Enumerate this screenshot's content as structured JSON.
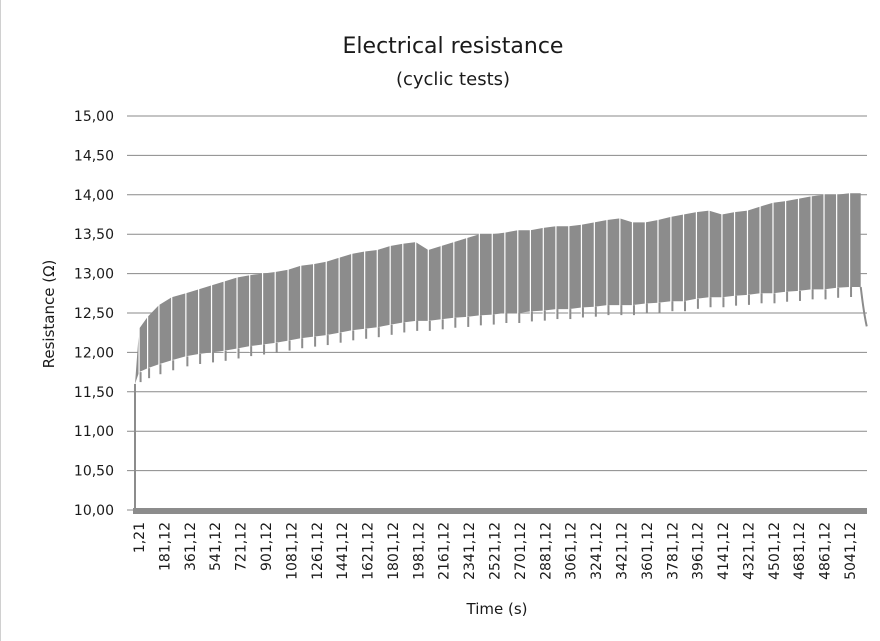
{
  "chart_data": {
    "type": "line",
    "title": "Electrical resistance",
    "subtitle": "(cyclic tests)",
    "xlabel": "Time (s)",
    "ylabel": "Resistance (Ω)",
    "ylim": [
      10.0,
      15.0
    ],
    "y_ticks": [
      "10,00",
      "10,50",
      "11,00",
      "11,50",
      "12,00",
      "12,50",
      "13,00",
      "13,50",
      "14,00",
      "14,50",
      "15,00"
    ],
    "y_tick_values": [
      10.0,
      10.5,
      11.0,
      11.5,
      12.0,
      12.5,
      13.0,
      13.5,
      14.0,
      14.5,
      15.0
    ],
    "x_ticks": [
      "1,21",
      "181,12",
      "361,12",
      "541,12",
      "721,12",
      "901,12",
      "1081,12",
      "1261,12",
      "1441,12",
      "1621,12",
      "1801,12",
      "1981,12",
      "2161,12",
      "2341,12",
      "2521,12",
      "2701,12",
      "2881,12",
      "3061,12",
      "3241,12",
      "3421,12",
      "3601,12",
      "3781,12",
      "3961,12",
      "4141,12",
      "4321,12",
      "4501,12",
      "4681,12",
      "4861,12",
      "5041,12"
    ],
    "xlim": [
      1.21,
      5150
    ],
    "grid": true,
    "legend": "none",
    "series_color": "#8c8c8c",
    "series": [
      {
        "x": [
          1.21,
          30,
          90,
          170,
          260,
          360,
          450,
          541,
          630,
          721,
          810,
          901,
          990,
          1081,
          1170,
          1261,
          1350,
          1441,
          1530,
          1621,
          1710,
          1801,
          1890,
          1981,
          2070,
          2161,
          2250,
          2341,
          2430,
          2521,
          2610,
          2701,
          2790,
          2881,
          2970,
          3061,
          3150,
          3241,
          3330,
          3421,
          3510,
          3601,
          3690,
          3781,
          3870,
          3961,
          4050,
          4141,
          4230,
          4321,
          4410,
          4501,
          4590,
          4681,
          4770,
          4861,
          4950,
          5041,
          5120
        ],
        "y_upper": [
          11.6,
          12.3,
          12.45,
          12.6,
          12.7,
          12.75,
          12.8,
          12.85,
          12.9,
          12.95,
          12.98,
          13.0,
          13.02,
          13.05,
          13.1,
          13.12,
          13.15,
          13.2,
          13.25,
          13.28,
          13.3,
          13.35,
          13.38,
          13.4,
          13.3,
          13.35,
          13.4,
          13.45,
          13.5,
          13.5,
          13.52,
          13.55,
          13.55,
          13.58,
          13.6,
          13.6,
          13.62,
          13.65,
          13.68,
          13.7,
          13.65,
          13.65,
          13.68,
          13.72,
          13.75,
          13.78,
          13.8,
          13.75,
          13.78,
          13.8,
          13.85,
          13.9,
          13.92,
          13.95,
          13.98,
          14.0,
          14.0,
          14.02,
          14.02
        ],
        "y_lower": [
          11.6,
          11.75,
          11.8,
          11.85,
          11.9,
          11.95,
          11.98,
          12.0,
          12.02,
          12.05,
          12.08,
          12.1,
          12.12,
          12.15,
          12.18,
          12.2,
          12.22,
          12.25,
          12.28,
          12.3,
          12.32,
          12.35,
          12.38,
          12.4,
          12.4,
          12.42,
          12.44,
          12.45,
          12.47,
          12.48,
          12.5,
          12.5,
          12.52,
          12.53,
          12.55,
          12.55,
          12.57,
          12.58,
          12.6,
          12.6,
          12.6,
          12.62,
          12.63,
          12.65,
          12.65,
          12.68,
          12.7,
          12.7,
          12.72,
          12.73,
          12.75,
          12.75,
          12.77,
          12.78,
          12.8,
          12.8,
          12.82,
          12.83,
          12.83
        ]
      }
    ]
  }
}
